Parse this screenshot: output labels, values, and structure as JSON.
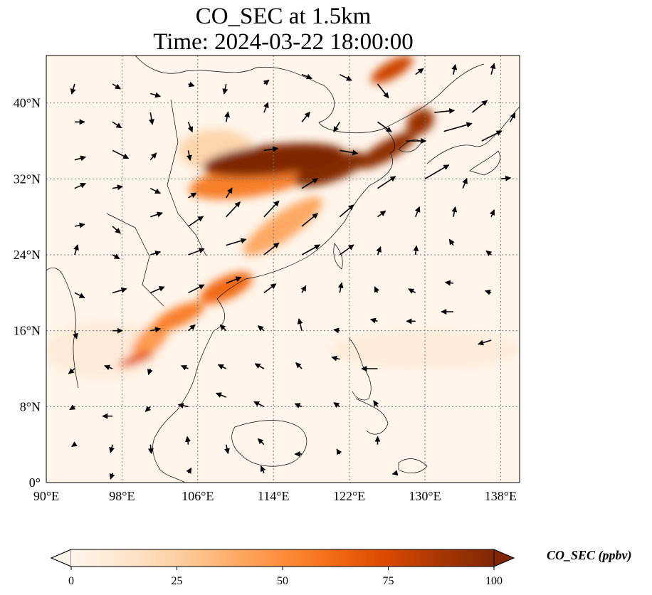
{
  "title": {
    "line1": "CO_SEC at 1.5km",
    "line2": "Time: 2024-03-22 18:00:00"
  },
  "map": {
    "lon_range": [
      90,
      140
    ],
    "lat_range": [
      0,
      45
    ],
    "lon_ticks": [
      {
        "value": 90,
        "label": "90°E"
      },
      {
        "value": 98,
        "label": "98°E"
      },
      {
        "value": 106,
        "label": "106°E"
      },
      {
        "value": 114,
        "label": "114°E"
      },
      {
        "value": 122,
        "label": "122°E"
      },
      {
        "value": 130,
        "label": "130°E"
      },
      {
        "value": 138,
        "label": "138°E"
      }
    ],
    "lat_ticks": [
      {
        "value": 0,
        "label": "0°"
      },
      {
        "value": 8,
        "label": "8°N"
      },
      {
        "value": 16,
        "label": "16°N"
      },
      {
        "value": 24,
        "label": "24°N"
      },
      {
        "value": 32,
        "label": "32°N"
      },
      {
        "value": 40,
        "label": "40°N"
      }
    ],
    "gridlines": true,
    "background_color": "#fff5eb",
    "plumes": [
      {
        "lon": 114,
        "lat": 34,
        "rx": 7.5,
        "ry": 1.6,
        "rot": -6,
        "value": 100
      },
      {
        "lon": 120,
        "lat": 33,
        "rx": 4,
        "ry": 1.3,
        "rot": -20,
        "value": 98
      },
      {
        "lon": 126,
        "lat": 35,
        "rx": 3.5,
        "ry": 1.0,
        "rot": -30,
        "value": 95
      },
      {
        "lon": 129.5,
        "lat": 38,
        "rx": 1.6,
        "ry": 1.2,
        "rot": -40,
        "value": 92
      },
      {
        "lon": 126.5,
        "lat": 43.5,
        "rx": 2.5,
        "ry": 0.9,
        "rot": -30,
        "value": 78
      },
      {
        "lon": 112,
        "lat": 32,
        "rx": 7,
        "ry": 1.8,
        "rot": -10,
        "value": 55
      },
      {
        "lon": 115,
        "lat": 27,
        "rx": 5,
        "ry": 1.4,
        "rot": -35,
        "value": 40
      },
      {
        "lon": 109,
        "lat": 20.5,
        "rx": 3,
        "ry": 1.2,
        "rot": -25,
        "value": 62
      },
      {
        "lon": 104,
        "lat": 17.5,
        "rx": 3,
        "ry": 1.0,
        "rot": -25,
        "value": 55
      },
      {
        "lon": 99.5,
        "lat": 13,
        "rx": 2,
        "ry": 0.5,
        "rot": -20,
        "value": 70
      },
      {
        "lon": 101,
        "lat": 15,
        "rx": 2.5,
        "ry": 1.2,
        "rot": -45,
        "value": 45
      },
      {
        "lon": 108,
        "lat": 35,
        "rx": 4,
        "ry": 2.2,
        "rot": 0,
        "value": 22
      },
      {
        "lon": 130,
        "lat": 14,
        "rx": 10,
        "ry": 2,
        "rot": 0,
        "value": 8
      },
      {
        "lon": 96,
        "lat": 14,
        "rx": 6,
        "ry": 3,
        "rot": 0,
        "value": 8
      }
    ],
    "wind_vectors": [
      {
        "lon": 93,
        "lat": 42,
        "u": -0.3,
        "v": -1
      },
      {
        "lon": 97,
        "lat": 42,
        "u": 0.8,
        "v": -0.5
      },
      {
        "lon": 101,
        "lat": 41,
        "u": 1,
        "v": -0.3
      },
      {
        "lon": 105,
        "lat": 42,
        "u": 0.6,
        "v": -0.2
      },
      {
        "lon": 109,
        "lat": 42,
        "u": -0.2,
        "v": -1
      },
      {
        "lon": 113,
        "lat": 42,
        "u": 0.5,
        "v": 0.4
      },
      {
        "lon": 117,
        "lat": 43,
        "u": 1,
        "v": -0.4
      },
      {
        "lon": 121,
        "lat": 43,
        "u": 1.2,
        "v": -0.6
      },
      {
        "lon": 125,
        "lat": 42,
        "u": 1.1,
        "v": -1.4
      },
      {
        "lon": 129,
        "lat": 43,
        "u": 0.8,
        "v": 0.6
      },
      {
        "lon": 133,
        "lat": 43,
        "u": 0.2,
        "v": 1
      },
      {
        "lon": 137,
        "lat": 43,
        "u": 0.3,
        "v": 1.1
      },
      {
        "lon": 93,
        "lat": 38,
        "u": 1,
        "v": 0
      },
      {
        "lon": 97,
        "lat": 38,
        "u": 0.9,
        "v": -0.6
      },
      {
        "lon": 101,
        "lat": 39,
        "u": 0.2,
        "v": -1.2
      },
      {
        "lon": 105,
        "lat": 38,
        "u": 0.4,
        "v": -1
      },
      {
        "lon": 109,
        "lat": 38,
        "u": 0.2,
        "v": 1
      },
      {
        "lon": 113,
        "lat": 39,
        "u": 0.4,
        "v": 1
      },
      {
        "lon": 117,
        "lat": 38,
        "u": 0.8,
        "v": 1
      },
      {
        "lon": 121,
        "lat": 38,
        "u": -0.6,
        "v": -1
      },
      {
        "lon": 125,
        "lat": 38,
        "u": 1.4,
        "v": -1
      },
      {
        "lon": 131,
        "lat": 39,
        "u": 2,
        "v": 0.2
      },
      {
        "lon": 135,
        "lat": 39,
        "u": 1.5,
        "v": 1.2
      },
      {
        "lon": 139,
        "lat": 38,
        "u": 0.5,
        "v": 0.9
      },
      {
        "lon": 93,
        "lat": 34,
        "u": 1.1,
        "v": 0.3
      },
      {
        "lon": 97,
        "lat": 35,
        "u": 1.6,
        "v": -0.8
      },
      {
        "lon": 101,
        "lat": 34,
        "u": 0.6,
        "v": 0.7
      },
      {
        "lon": 105,
        "lat": 35,
        "u": 0.2,
        "v": -1
      },
      {
        "lon": 113,
        "lat": 35,
        "u": 1.4,
        "v": 0.2
      },
      {
        "lon": 121,
        "lat": 35,
        "u": 1.8,
        "v": -0.3
      },
      {
        "lon": 128,
        "lat": 36,
        "u": 2,
        "v": 0
      },
      {
        "lon": 132,
        "lat": 37,
        "u": 2.8,
        "v": 0.8
      },
      {
        "lon": 136,
        "lat": 36,
        "u": 2,
        "v": 1
      },
      {
        "lon": 93,
        "lat": 31,
        "u": 1.1,
        "v": 0.5
      },
      {
        "lon": 97,
        "lat": 31,
        "u": 1,
        "v": 0.2
      },
      {
        "lon": 101,
        "lat": 31,
        "u": 1,
        "v": -0.5
      },
      {
        "lon": 105,
        "lat": 30,
        "u": 0.8,
        "v": 0.5
      },
      {
        "lon": 109,
        "lat": 30,
        "u": 0.6,
        "v": 1
      },
      {
        "lon": 117,
        "lat": 31,
        "u": 1.6,
        "v": 1
      },
      {
        "lon": 125,
        "lat": 31,
        "u": 1.8,
        "v": 1.2
      },
      {
        "lon": 130,
        "lat": 32,
        "u": 2.4,
        "v": 1.4
      },
      {
        "lon": 134,
        "lat": 31,
        "u": 0.4,
        "v": 1
      },
      {
        "lon": 138,
        "lat": 32,
        "u": 1,
        "v": 0.1
      },
      {
        "lon": 93,
        "lat": 27,
        "u": 1,
        "v": 0.2
      },
      {
        "lon": 97,
        "lat": 27,
        "u": 0.8,
        "v": -0.7
      },
      {
        "lon": 101,
        "lat": 28,
        "u": 1.2,
        "v": 0.4
      },
      {
        "lon": 105,
        "lat": 27,
        "u": 1.5,
        "v": 1
      },
      {
        "lon": 109,
        "lat": 28,
        "u": 1.4,
        "v": 1.5
      },
      {
        "lon": 113,
        "lat": 28,
        "u": 1.5,
        "v": 1.6
      },
      {
        "lon": 117,
        "lat": 27,
        "u": 1.6,
        "v": 1.3
      },
      {
        "lon": 121,
        "lat": 28,
        "u": 1.4,
        "v": 1.2
      },
      {
        "lon": 125,
        "lat": 28,
        "u": 0.8,
        "v": 0.6
      },
      {
        "lon": 129,
        "lat": 28,
        "u": 0.4,
        "v": 1
      },
      {
        "lon": 133,
        "lat": 28,
        "u": 0.2,
        "v": 1
      },
      {
        "lon": 137,
        "lat": 28,
        "u": 0.3,
        "v": 0.7
      },
      {
        "lon": 93,
        "lat": 24,
        "u": 0.3,
        "v": 1
      },
      {
        "lon": 97,
        "lat": 24,
        "u": 0.7,
        "v": -0.4
      },
      {
        "lon": 101,
        "lat": 24,
        "u": 1,
        "v": 0.3
      },
      {
        "lon": 105,
        "lat": 24,
        "u": 1.6,
        "v": 0.6
      },
      {
        "lon": 109,
        "lat": 25,
        "u": 2,
        "v": 0.6
      },
      {
        "lon": 113,
        "lat": 24,
        "u": 1.5,
        "v": 1.2
      },
      {
        "lon": 117,
        "lat": 24,
        "u": 1.8,
        "v": 1
      },
      {
        "lon": 121,
        "lat": 24,
        "u": 1.4,
        "v": 1
      },
      {
        "lon": 125,
        "lat": 24,
        "u": 0.3,
        "v": 0.8
      },
      {
        "lon": 129,
        "lat": 24,
        "u": 0.1,
        "v": 0.9
      },
      {
        "lon": 133,
        "lat": 25,
        "u": -0.4,
        "v": 0.6
      },
      {
        "lon": 137,
        "lat": 24,
        "u": -0.5,
        "v": 0.4
      },
      {
        "lon": 93,
        "lat": 20,
        "u": 1,
        "v": -0.5
      },
      {
        "lon": 97,
        "lat": 20,
        "u": 1.4,
        "v": 0.4
      },
      {
        "lon": 101,
        "lat": 20,
        "u": 1.4,
        "v": 0.6
      },
      {
        "lon": 105,
        "lat": 20,
        "u": 1.6,
        "v": 0.8
      },
      {
        "lon": 109,
        "lat": 21,
        "u": 1.5,
        "v": 0.6
      },
      {
        "lon": 113,
        "lat": 20,
        "u": 1.2,
        "v": 0.9
      },
      {
        "lon": 117,
        "lat": 20,
        "u": 0.4,
        "v": 0.7
      },
      {
        "lon": 121,
        "lat": 20,
        "u": 0.2,
        "v": 1
      },
      {
        "lon": 125,
        "lat": 20,
        "u": -0.3,
        "v": 0.6
      },
      {
        "lon": 129,
        "lat": 20,
        "u": -0.7,
        "v": 0.4
      },
      {
        "lon": 133,
        "lat": 21,
        "u": -0.8,
        "v": 0.1
      },
      {
        "lon": 137,
        "lat": 20,
        "u": -0.6,
        "v": 0.2
      },
      {
        "lon": 93,
        "lat": 16,
        "u": 0.2,
        "v": -0.8
      },
      {
        "lon": 97,
        "lat": 16,
        "u": 1,
        "v": 0
      },
      {
        "lon": 101,
        "lat": 16,
        "u": 1,
        "v": 0.2
      },
      {
        "lon": 105,
        "lat": 16,
        "u": 0.7,
        "v": 0.6
      },
      {
        "lon": 109,
        "lat": 16,
        "u": -0.6,
        "v": 0.6
      },
      {
        "lon": 113,
        "lat": 16,
        "u": -0.6,
        "v": 0.5
      },
      {
        "lon": 117,
        "lat": 16,
        "u": -0.3,
        "v": 1.2
      },
      {
        "lon": 121,
        "lat": 16,
        "u": -0.6,
        "v": 0.1
      },
      {
        "lon": 125,
        "lat": 17,
        "u": -0.7,
        "v": 0.2
      },
      {
        "lon": 129,
        "lat": 17,
        "u": -0.9,
        "v": 0
      },
      {
        "lon": 133,
        "lat": 18,
        "u": -1.2,
        "v": 0
      },
      {
        "lon": 137,
        "lat": 15,
        "u": -1.3,
        "v": -0.4
      },
      {
        "lon": 93,
        "lat": 12,
        "u": -0.6,
        "v": -0.5
      },
      {
        "lon": 97,
        "lat": 12,
        "u": -0.8,
        "v": 0.3
      },
      {
        "lon": 101,
        "lat": 12,
        "u": -0.2,
        "v": -0.6
      },
      {
        "lon": 105,
        "lat": 12,
        "u": -0.7,
        "v": 0.3
      },
      {
        "lon": 109,
        "lat": 12,
        "u": -0.8,
        "v": 0.4
      },
      {
        "lon": 113,
        "lat": 12,
        "u": -0.9,
        "v": 0.5
      },
      {
        "lon": 117,
        "lat": 12,
        "u": -0.6,
        "v": 0.6
      },
      {
        "lon": 121,
        "lat": 13,
        "u": -0.8,
        "v": 0.2
      },
      {
        "lon": 125,
        "lat": 12,
        "u": -1.6,
        "v": 0
      },
      {
        "lon": 93,
        "lat": 8,
        "u": -0.5,
        "v": -0.3
      },
      {
        "lon": 97,
        "lat": 7,
        "u": -1,
        "v": 0
      },
      {
        "lon": 101,
        "lat": 8,
        "u": -0.5,
        "v": -0.5
      },
      {
        "lon": 105,
        "lat": 8,
        "u": -1,
        "v": 0.2
      },
      {
        "lon": 109,
        "lat": 9,
        "u": -1,
        "v": 0.4
      },
      {
        "lon": 113,
        "lat": 8,
        "u": -1,
        "v": 0.5
      },
      {
        "lon": 117,
        "lat": 8,
        "u": -0.7,
        "v": 0.3
      },
      {
        "lon": 121,
        "lat": 8,
        "u": -0.6,
        "v": 0.4
      },
      {
        "lon": 125,
        "lat": 8,
        "u": -0.4,
        "v": 0.6
      },
      {
        "lon": 93,
        "lat": 4,
        "u": -0.3,
        "v": -0.2
      },
      {
        "lon": 97,
        "lat": 4,
        "u": -0.2,
        "v": -0.8
      },
      {
        "lon": 101,
        "lat": 4,
        "u": 0.1,
        "v": -0.9
      },
      {
        "lon": 105,
        "lat": 4,
        "u": -0.1,
        "v": 0.8
      },
      {
        "lon": 109,
        "lat": 4,
        "u": 0.2,
        "v": -0.9
      },
      {
        "lon": 113,
        "lat": 4,
        "u": -0.6,
        "v": 0.6
      },
      {
        "lon": 117,
        "lat": 3,
        "u": -0.7,
        "v": 0
      },
      {
        "lon": 121,
        "lat": 3,
        "u": -0.3,
        "v": 0.5
      },
      {
        "lon": 125,
        "lat": 4,
        "u": 0,
        "v": 0.8
      },
      {
        "lon": 97,
        "lat": 1,
        "u": -0.2,
        "v": -0.6
      },
      {
        "lon": 105,
        "lat": 1,
        "u": 0.3,
        "v": 0.5
      },
      {
        "lon": 113,
        "lat": 1,
        "u": -0.3,
        "v": 0.7
      },
      {
        "lon": 127,
        "lat": 1,
        "u": -0.4,
        "v": -0.1
      }
    ]
  },
  "colorbar": {
    "label": "CO_SEC (ppbv)",
    "range": [
      0,
      100
    ],
    "extend": "both",
    "ticks": [
      {
        "value": 0,
        "label": "0"
      },
      {
        "value": 25,
        "label": "25"
      },
      {
        "value": 50,
        "label": "50"
      },
      {
        "value": 75,
        "label": "75"
      },
      {
        "value": 100,
        "label": "100"
      }
    ],
    "colormap": [
      "#fff5eb",
      "#fee6ce",
      "#fdd0a2",
      "#fdae6b",
      "#fd8d3c",
      "#f16913",
      "#d94801",
      "#a63603",
      "#7f2704"
    ]
  }
}
